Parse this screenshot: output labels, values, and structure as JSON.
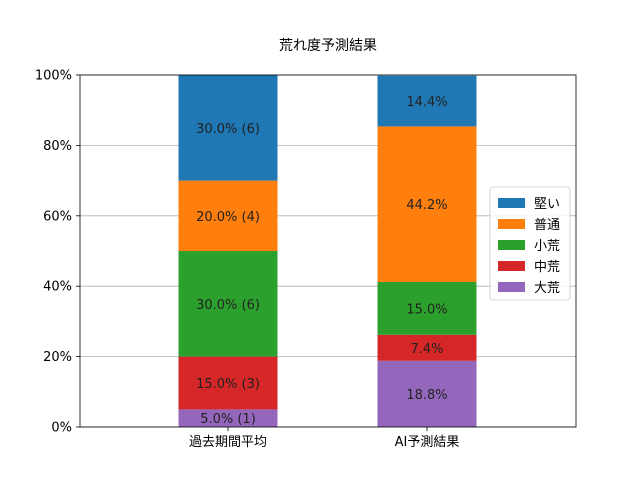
{
  "chart_data": {
    "type": "bar",
    "stacked": true,
    "title": "荒れ度予測結果",
    "categories": [
      "過去期間平均",
      "AI予測結果"
    ],
    "ylim": [
      0,
      100
    ],
    "yticks": [
      "0%",
      "20%",
      "40%",
      "60%",
      "80%",
      "100%"
    ],
    "grid": "y",
    "legend_position": "right",
    "series": [
      {
        "name": "大荒",
        "color": "#9467bd",
        "values": [
          5.0,
          18.8
        ],
        "labels": [
          "5.0% (1)",
          "18.8%"
        ]
      },
      {
        "name": "中荒",
        "color": "#d62728",
        "values": [
          15.0,
          7.4
        ],
        "labels": [
          "15.0% (3)",
          "7.4%"
        ]
      },
      {
        "name": "小荒",
        "color": "#2ca02c",
        "values": [
          30.0,
          15.0
        ],
        "labels": [
          "30.0% (6)",
          "15.0%"
        ]
      },
      {
        "name": "普通",
        "color": "#ff7f0e",
        "values": [
          20.0,
          44.2
        ],
        "labels": [
          "20.0% (4)",
          "44.2%"
        ]
      },
      {
        "name": "堅い",
        "color": "#1f77b4",
        "values": [
          30.0,
          14.4
        ],
        "labels": [
          "30.0% (6)",
          "14.4%"
        ]
      }
    ],
    "legend_order": [
      "堅い",
      "普通",
      "小荒",
      "中荒",
      "大荒"
    ]
  }
}
